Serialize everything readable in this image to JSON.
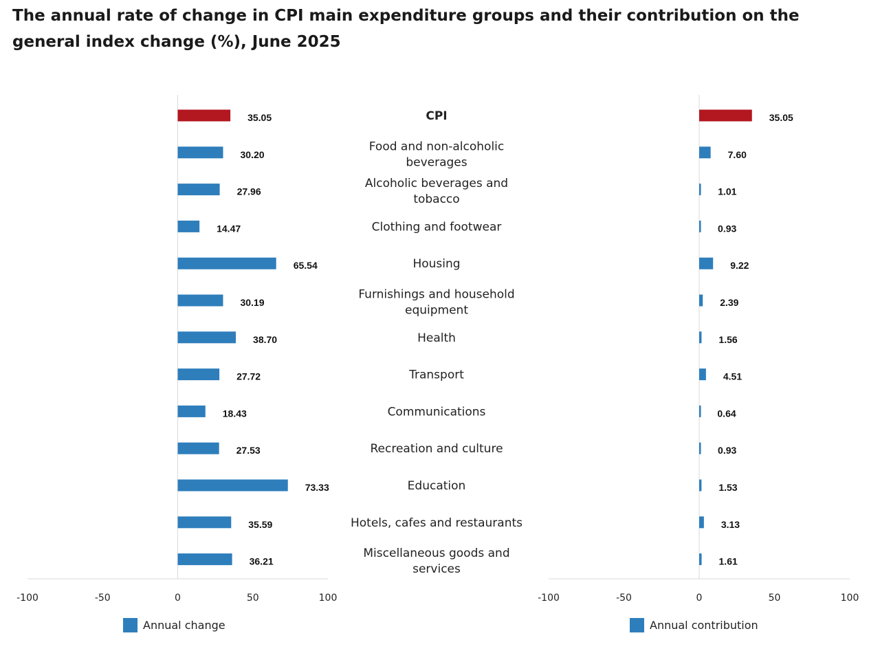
{
  "chart_data": {
    "type": "bar",
    "title": "The annual rate of change in CPI main expenditure groups and their contribution on the general index change (%), June 2025",
    "categories": [
      {
        "lines": [
          "CPI"
        ]
      },
      {
        "lines": [
          "Food and non-alcoholic",
          "beverages"
        ]
      },
      {
        "lines": [
          "Alcoholic beverages and",
          "tobacco"
        ]
      },
      {
        "lines": [
          "Clothing and footwear"
        ]
      },
      {
        "lines": [
          "Housing"
        ]
      },
      {
        "lines": [
          "Furnishings and household",
          "equipment"
        ]
      },
      {
        "lines": [
          "Health"
        ]
      },
      {
        "lines": [
          "Transport"
        ]
      },
      {
        "lines": [
          "Communications"
        ]
      },
      {
        "lines": [
          "Recreation and culture"
        ]
      },
      {
        "lines": [
          "Education"
        ]
      },
      {
        "lines": [
          "Hotels, cafes and restaurants"
        ]
      },
      {
        "lines": [
          "Miscellaneous goods and",
          "services"
        ]
      }
    ],
    "series": [
      {
        "name": "Annual change",
        "values": [
          35.05,
          30.2,
          27.96,
          14.47,
          65.54,
          30.19,
          38.7,
          27.72,
          18.43,
          27.53,
          73.33,
          35.59,
          36.21
        ],
        "labels": [
          "35.05",
          "30.20",
          "27.96",
          "14.47",
          "65.54",
          "30.19",
          "38.70",
          "27.72",
          "18.43",
          "27.53",
          "73.33",
          "35.59",
          "36.21"
        ]
      },
      {
        "name": "Annual contribution",
        "values": [
          35.05,
          7.6,
          1.01,
          0.93,
          9.22,
          2.39,
          1.56,
          4.51,
          0.64,
          0.93,
          1.53,
          3.13,
          1.61
        ],
        "labels": [
          "35.05",
          "7.60",
          "1.01",
          "0.93",
          "9.22",
          "2.39",
          "1.56",
          "4.51",
          "0.64",
          "0.93",
          "1.53",
          "3.13",
          "1.61"
        ]
      }
    ],
    "xlim": [
      -100,
      100
    ],
    "xticks": [
      -100,
      -50,
      0,
      50,
      100
    ],
    "xtick_labels": [
      "-100",
      "-50",
      "0",
      "50",
      "100"
    ],
    "highlight_category": "CPI",
    "legend_position": "bottom",
    "colors": {
      "bar": "#2e7ebc",
      "highlight": "#b3171f",
      "axis": "#d9d9d9"
    }
  }
}
